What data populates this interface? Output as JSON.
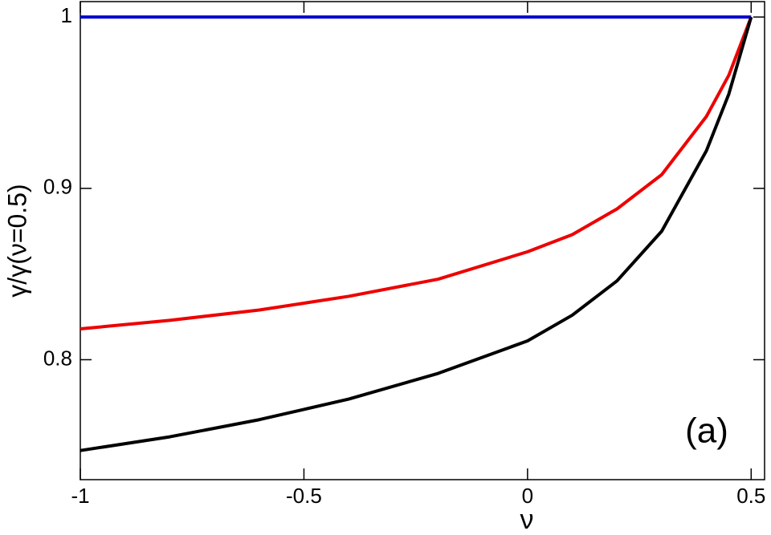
{
  "chart_data": {
    "type": "line",
    "x_label": "ν",
    "y_label": "γ/γ(ν=0.5)",
    "annotation": "(a)",
    "x": [
      -1,
      -0.8,
      -0.6,
      -0.5,
      -0.4,
      -0.2,
      0,
      0.1,
      0.2,
      0.3,
      0.4,
      0.45,
      0.5
    ],
    "series": [
      {
        "color": "#0000cc",
        "values": [
          1,
          1,
          1,
          1,
          1,
          1,
          1,
          1,
          1,
          1,
          1,
          1,
          1
        ]
      },
      {
        "color": "#ee0000",
        "values": [
          0.818,
          0.823,
          0.829,
          0.833,
          0.837,
          0.847,
          0.863,
          0.873,
          0.888,
          0.908,
          0.942,
          0.966,
          1.0
        ]
      },
      {
        "color": "#000000",
        "values": [
          0.747,
          0.755,
          0.765,
          0.771,
          0.777,
          0.792,
          0.811,
          0.826,
          0.846,
          0.875,
          0.922,
          0.955,
          1.0
        ]
      }
    ],
    "xlim": [
      -1,
      0.53
    ],
    "ylim": [
      0.73,
      1.009
    ],
    "xticks": [
      -1,
      -0.5,
      0,
      0.5
    ],
    "yticks": [
      0.8,
      0.9,
      1
    ]
  }
}
